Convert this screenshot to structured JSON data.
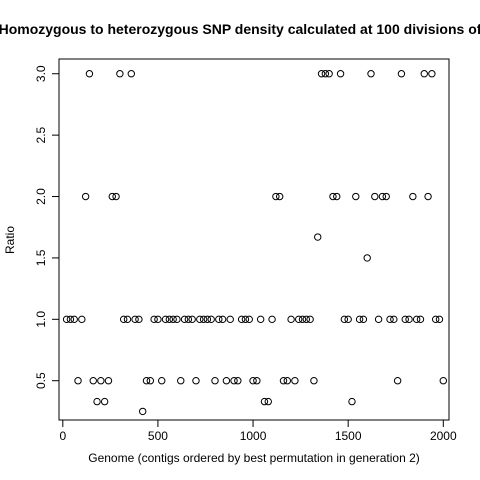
{
  "chart_data": {
    "type": "scatter",
    "title": "Homozygous to heterozygous SNP density calculated at 100 divisions of",
    "xlabel": "Genome (contigs ordered by best permutation in generation 2)",
    "ylabel": "Ratio",
    "xlim": [
      -20,
      2030
    ],
    "ylim": [
      0.18,
      3.12
    ],
    "xticks": [
      "0",
      "500",
      "1000",
      "1500",
      "2000"
    ],
    "xtick_values": [
      0,
      500,
      1000,
      1500,
      2000
    ],
    "yticks": [
      "0.5",
      "1.0",
      "1.5",
      "2.0",
      "2.5",
      "3.0"
    ],
    "ytick_values": [
      0.5,
      1.0,
      1.5,
      2.0,
      2.5,
      3.0
    ],
    "grid": false,
    "legend": "none",
    "points": [
      [
        20,
        1.0
      ],
      [
        40,
        1.0
      ],
      [
        60,
        1.0
      ],
      [
        80,
        0.5
      ],
      [
        100,
        1.0
      ],
      [
        120,
        2.0
      ],
      [
        140,
        3.0
      ],
      [
        160,
        0.5
      ],
      [
        180,
        0.33
      ],
      [
        200,
        0.5
      ],
      [
        220,
        0.33
      ],
      [
        240,
        0.5
      ],
      [
        260,
        2.0
      ],
      [
        280,
        2.0
      ],
      [
        300,
        3.0
      ],
      [
        320,
        1.0
      ],
      [
        340,
        1.0
      ],
      [
        360,
        3.0
      ],
      [
        380,
        1.0
      ],
      [
        400,
        1.0
      ],
      [
        420,
        0.25
      ],
      [
        440,
        0.5
      ],
      [
        460,
        0.5
      ],
      [
        480,
        1.0
      ],
      [
        500,
        1.0
      ],
      [
        520,
        0.5
      ],
      [
        540,
        1.0
      ],
      [
        560,
        1.0
      ],
      [
        580,
        1.0
      ],
      [
        600,
        1.0
      ],
      [
        620,
        0.5
      ],
      [
        640,
        1.0
      ],
      [
        660,
        1.0
      ],
      [
        680,
        1.0
      ],
      [
        700,
        0.5
      ],
      [
        720,
        1.0
      ],
      [
        740,
        1.0
      ],
      [
        760,
        1.0
      ],
      [
        780,
        1.0
      ],
      [
        800,
        0.5
      ],
      [
        820,
        1.0
      ],
      [
        840,
        1.0
      ],
      [
        860,
        0.5
      ],
      [
        880,
        1.0
      ],
      [
        900,
        0.5
      ],
      [
        920,
        0.5
      ],
      [
        940,
        1.0
      ],
      [
        960,
        1.0
      ],
      [
        980,
        1.0
      ],
      [
        1000,
        0.5
      ],
      [
        1020,
        0.5
      ],
      [
        1040,
        1.0
      ],
      [
        1060,
        0.33
      ],
      [
        1080,
        0.33
      ],
      [
        1100,
        1.0
      ],
      [
        1120,
        2.0
      ],
      [
        1140,
        2.0
      ],
      [
        1160,
        0.5
      ],
      [
        1180,
        0.5
      ],
      [
        1200,
        1.0
      ],
      [
        1220,
        0.5
      ],
      [
        1240,
        1.0
      ],
      [
        1260,
        1.0
      ],
      [
        1280,
        1.0
      ],
      [
        1300,
        1.0
      ],
      [
        1320,
        0.5
      ],
      [
        1340,
        1.67
      ],
      [
        1360,
        3.0
      ],
      [
        1380,
        3.0
      ],
      [
        1400,
        3.0
      ],
      [
        1420,
        2.0
      ],
      [
        1440,
        2.0
      ],
      [
        1460,
        3.0
      ],
      [
        1480,
        1.0
      ],
      [
        1500,
        1.0
      ],
      [
        1520,
        0.33
      ],
      [
        1540,
        2.0
      ],
      [
        1560,
        1.0
      ],
      [
        1580,
        1.0
      ],
      [
        1600,
        1.5
      ],
      [
        1620,
        3.0
      ],
      [
        1640,
        2.0
      ],
      [
        1660,
        1.0
      ],
      [
        1680,
        2.0
      ],
      [
        1700,
        2.0
      ],
      [
        1720,
        1.0
      ],
      [
        1740,
        1.0
      ],
      [
        1760,
        0.5
      ],
      [
        1780,
        3.0
      ],
      [
        1800,
        1.0
      ],
      [
        1820,
        1.0
      ],
      [
        1840,
        2.0
      ],
      [
        1860,
        1.0
      ],
      [
        1880,
        1.0
      ],
      [
        1900,
        3.0
      ],
      [
        1920,
        2.0
      ],
      [
        1940,
        3.0
      ],
      [
        1960,
        1.0
      ],
      [
        1980,
        1.0
      ],
      [
        2000,
        0.5
      ]
    ]
  }
}
